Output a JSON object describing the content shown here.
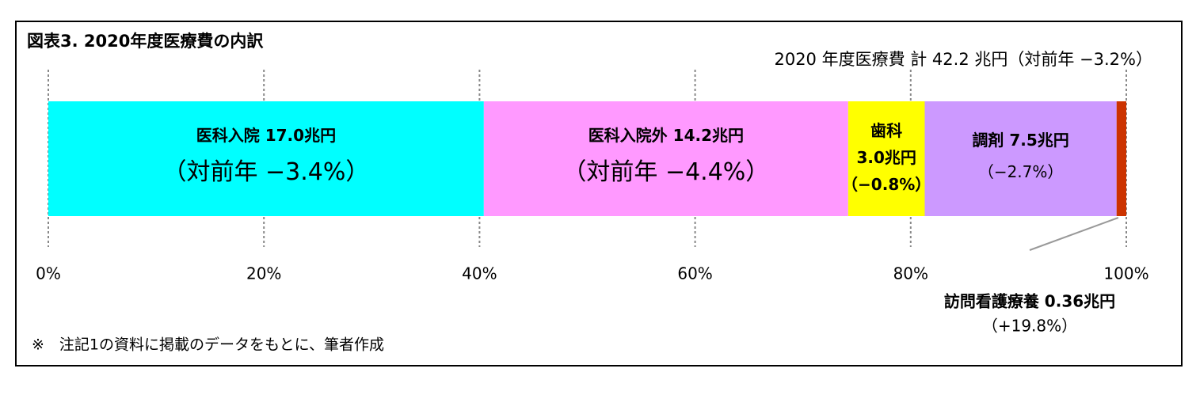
{
  "chart_data": {
    "type": "stacked-bar-100",
    "title": "図表3. 2020年度医療費の内訳",
    "total_note": "2020 年度医療費 計 42.2 兆円（対前年 −3.2%）",
    "source": "※　注記1の資料に掲載のデータをもとに、筆者作成",
    "xlim": [
      0,
      100
    ],
    "xticks": [
      {
        "value": 0,
        "label": "0%"
      },
      {
        "value": 20,
        "label": "20%"
      },
      {
        "value": 40,
        "label": "40%"
      },
      {
        "value": 60,
        "label": "60%"
      },
      {
        "value": 80,
        "label": "80%"
      },
      {
        "value": 100,
        "label": "100%"
      }
    ],
    "grid": true,
    "series": [
      {
        "name": "医科入院",
        "color": "#00ffff",
        "values": [
          40.4
        ],
        "label_lines": [
          "医科入院 17.0兆円",
          "（対前年 −3.4%）"
        ]
      },
      {
        "name": "医科入院外",
        "color": "#ff99ff",
        "values": [
          33.8
        ],
        "label_lines": [
          "医科入院外 14.2兆円",
          "（対前年 −4.4%）"
        ]
      },
      {
        "name": "歯科",
        "color": "#ffff00",
        "values": [
          7.1
        ],
        "label_lines": [
          "歯科",
          "3.0兆円",
          "（−0.8%）"
        ]
      },
      {
        "name": "調剤",
        "color": "#cc99ff",
        "values": [
          17.8
        ],
        "label_lines": [
          "調剤 7.5兆円",
          "（−2.7%）"
        ]
      },
      {
        "name": "訪問看護療養",
        "color": "#cc3300",
        "values": [
          0.9
        ],
        "label_lines": [
          "訪問看護療養 0.36兆円",
          "（+19.8%）"
        ]
      }
    ]
  }
}
